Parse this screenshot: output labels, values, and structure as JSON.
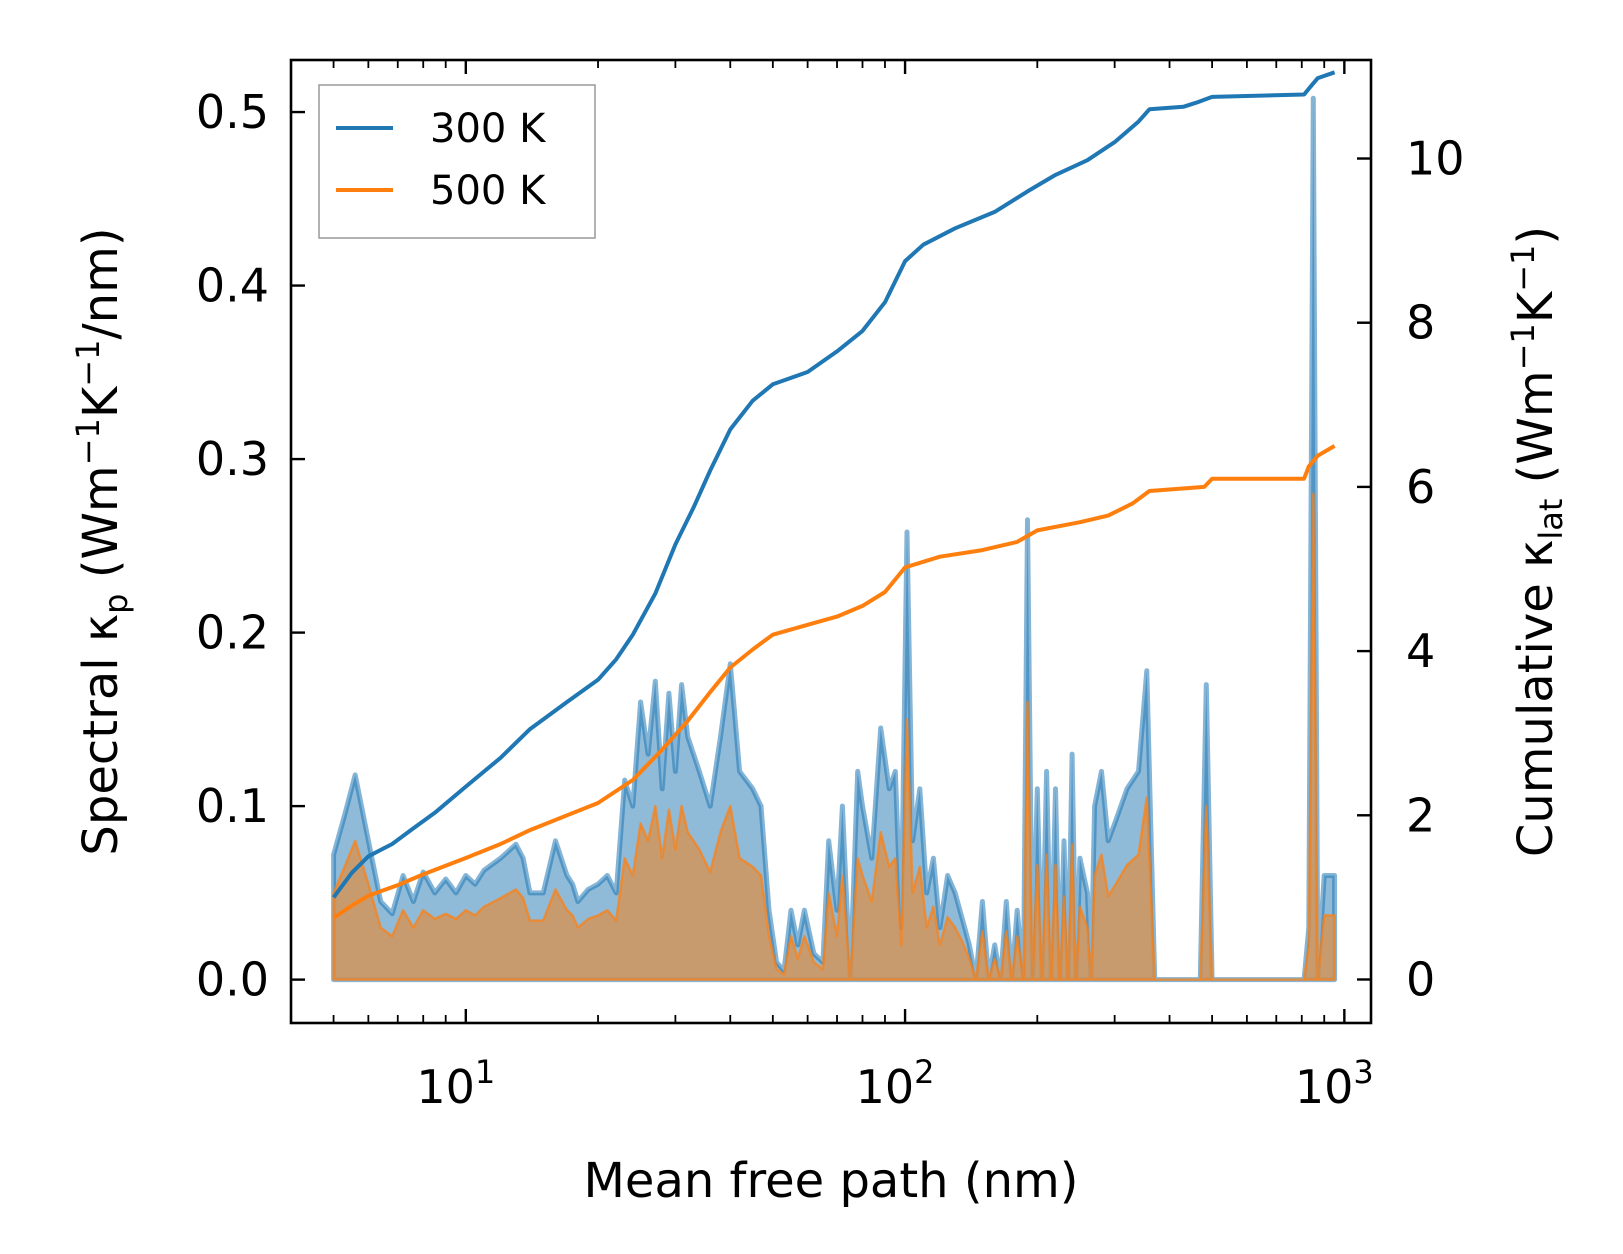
{
  "chart_data": {
    "type": "line",
    "title": "",
    "xlabel": "Mean free path (nm)",
    "xscale": "log",
    "xlim": [
      4.0,
      1150
    ],
    "x_ticks": [
      {
        "value": 10,
        "base": "10",
        "exp": "1"
      },
      {
        "value": 100,
        "base": "10",
        "exp": "2"
      },
      {
        "value": 1000,
        "base": "10",
        "exp": "3"
      }
    ],
    "ylabel_left": {
      "main": "Spectral κ",
      "sub": "p",
      "unit_open": " (Wm",
      "sup1": "−1",
      "mid": "K",
      "sup2": "−1",
      "unit_close": "/nm)"
    },
    "ylim_left": [
      -0.025,
      0.53
    ],
    "y_ticks_left": [
      "0.0",
      "0.1",
      "0.2",
      "0.3",
      "0.4",
      "0.5"
    ],
    "ylabel_right": {
      "main": "Cumulative κ",
      "sub": "lat",
      "unit_open": " (Wm",
      "sup1": "−1",
      "mid": "K",
      "sup2": "−1",
      "unit_close": ")"
    },
    "ylim_right": [
      -0.53,
      11.2
    ],
    "y_ticks_right": [
      "0",
      "2",
      "4",
      "6",
      "8",
      "10"
    ],
    "legend": {
      "position": "top-left",
      "entries": [
        "300 K",
        "500 K"
      ]
    },
    "colors": {
      "300 K": "#1f77b4",
      "500 K": "#ff7f0e",
      "fill_300": "#1f77b4",
      "fill_500": "#d2955a"
    },
    "series": [
      {
        "name": "300 K",
        "axis": "right",
        "kind": "cumulative",
        "points": [
          [
            5.0,
            1.0
          ],
          [
            5.5,
            1.3
          ],
          [
            6.0,
            1.5
          ],
          [
            6.8,
            1.65
          ],
          [
            7.5,
            1.82
          ],
          [
            8.5,
            2.03
          ],
          [
            10,
            2.35
          ],
          [
            12,
            2.7
          ],
          [
            14,
            3.05
          ],
          [
            17,
            3.38
          ],
          [
            20,
            3.65
          ],
          [
            22,
            3.9
          ],
          [
            24,
            4.2
          ],
          [
            27,
            4.7
          ],
          [
            30,
            5.3
          ],
          [
            33,
            5.75
          ],
          [
            36,
            6.2
          ],
          [
            40,
            6.7
          ],
          [
            45,
            7.05
          ],
          [
            50,
            7.25
          ],
          [
            60,
            7.4
          ],
          [
            70,
            7.65
          ],
          [
            80,
            7.9
          ],
          [
            90,
            8.25
          ],
          [
            100,
            8.75
          ],
          [
            110,
            8.95
          ],
          [
            130,
            9.15
          ],
          [
            160,
            9.35
          ],
          [
            190,
            9.6
          ],
          [
            220,
            9.8
          ],
          [
            260,
            9.98
          ],
          [
            300,
            10.2
          ],
          [
            340,
            10.45
          ],
          [
            360,
            10.6
          ],
          [
            430,
            10.63
          ],
          [
            460,
            10.68
          ],
          [
            500,
            10.75
          ],
          [
            810,
            10.78
          ],
          [
            830,
            10.85
          ],
          [
            870,
            10.98
          ],
          [
            950,
            11.05
          ]
        ]
      },
      {
        "name": "500 K",
        "axis": "right",
        "kind": "cumulative",
        "points": [
          [
            5.0,
            0.75
          ],
          [
            5.5,
            0.9
          ],
          [
            6.0,
            1.02
          ],
          [
            7,
            1.15
          ],
          [
            8,
            1.28
          ],
          [
            10,
            1.48
          ],
          [
            12,
            1.65
          ],
          [
            14,
            1.82
          ],
          [
            17,
            2.0
          ],
          [
            20,
            2.15
          ],
          [
            24,
            2.43
          ],
          [
            28,
            2.8
          ],
          [
            32,
            3.15
          ],
          [
            36,
            3.5
          ],
          [
            40,
            3.8
          ],
          [
            45,
            4.02
          ],
          [
            50,
            4.2
          ],
          [
            60,
            4.32
          ],
          [
            70,
            4.42
          ],
          [
            80,
            4.55
          ],
          [
            90,
            4.72
          ],
          [
            100,
            5.02
          ],
          [
            120,
            5.15
          ],
          [
            150,
            5.23
          ],
          [
            180,
            5.33
          ],
          [
            200,
            5.47
          ],
          [
            250,
            5.57
          ],
          [
            290,
            5.65
          ],
          [
            330,
            5.8
          ],
          [
            360,
            5.95
          ],
          [
            480,
            6.0
          ],
          [
            500,
            6.1
          ],
          [
            810,
            6.1
          ],
          [
            830,
            6.25
          ],
          [
            870,
            6.38
          ],
          [
            950,
            6.5
          ]
        ]
      },
      {
        "name": "300 K",
        "axis": "left",
        "kind": "spectral",
        "points": [
          [
            5.0,
            0.072
          ],
          [
            5.3,
            0.095
          ],
          [
            5.6,
            0.118
          ],
          [
            6.0,
            0.08
          ],
          [
            6.4,
            0.045
          ],
          [
            6.8,
            0.038
          ],
          [
            7.2,
            0.06
          ],
          [
            7.6,
            0.045
          ],
          [
            8.0,
            0.062
          ],
          [
            8.5,
            0.05
          ],
          [
            9.0,
            0.058
          ],
          [
            9.5,
            0.05
          ],
          [
            10,
            0.06
          ],
          [
            10.5,
            0.055
          ],
          [
            11,
            0.063
          ],
          [
            12,
            0.07
          ],
          [
            13,
            0.078
          ],
          [
            13.5,
            0.07
          ],
          [
            14,
            0.05
          ],
          [
            15,
            0.05
          ],
          [
            16,
            0.08
          ],
          [
            17,
            0.06
          ],
          [
            17.5,
            0.055
          ],
          [
            18,
            0.045
          ],
          [
            19,
            0.052
          ],
          [
            20,
            0.055
          ],
          [
            21,
            0.06
          ],
          [
            22,
            0.05
          ],
          [
            23,
            0.115
          ],
          [
            24,
            0.1
          ],
          [
            25,
            0.16
          ],
          [
            26,
            0.13
          ],
          [
            27,
            0.172
          ],
          [
            28,
            0.11
          ],
          [
            29,
            0.165
          ],
          [
            30,
            0.12
          ],
          [
            31,
            0.17
          ],
          [
            32,
            0.14
          ],
          [
            34,
            0.12
          ],
          [
            36,
            0.1
          ],
          [
            38,
            0.14
          ],
          [
            40,
            0.182
          ],
          [
            42,
            0.12
          ],
          [
            45,
            0.11
          ],
          [
            47,
            0.1
          ],
          [
            49,
            0.04
          ],
          [
            51,
            0.01
          ],
          [
            53,
            0.005
          ],
          [
            55,
            0.04
          ],
          [
            57,
            0.02
          ],
          [
            59,
            0.04
          ],
          [
            62,
            0.015
          ],
          [
            65,
            0.01
          ],
          [
            67,
            0.08
          ],
          [
            70,
            0.04
          ],
          [
            72,
            0.1
          ],
          [
            75,
            0.0
          ],
          [
            78,
            0.12
          ],
          [
            80,
            0.1
          ],
          [
            84,
            0.07
          ],
          [
            88,
            0.145
          ],
          [
            92,
            0.11
          ],
          [
            95,
            0.12
          ],
          [
            98,
            0.03
          ],
          [
            101,
            0.258
          ],
          [
            104,
            0.08
          ],
          [
            108,
            0.11
          ],
          [
            112,
            0.05
          ],
          [
            116,
            0.07
          ],
          [
            120,
            0.03
          ],
          [
            125,
            0.06
          ],
          [
            130,
            0.05
          ],
          [
            135,
            0.035
          ],
          [
            140,
            0.02
          ],
          [
            145,
            0.0
          ],
          [
            150,
            0.045
          ],
          [
            155,
            0.0
          ],
          [
            160,
            0.02
          ],
          [
            165,
            0.0
          ],
          [
            170,
            0.045
          ],
          [
            175,
            0.0
          ],
          [
            180,
            0.04
          ],
          [
            186,
            0.0
          ],
          [
            190,
            0.265
          ],
          [
            195,
            0.0
          ],
          [
            200,
            0.11
          ],
          [
            205,
            0.0
          ],
          [
            210,
            0.12
          ],
          [
            215,
            0.0
          ],
          [
            220,
            0.11
          ],
          [
            225,
            0.0
          ],
          [
            230,
            0.08
          ],
          [
            235,
            0.0
          ],
          [
            240,
            0.13
          ],
          [
            245,
            0.0
          ],
          [
            250,
            0.07
          ],
          [
            260,
            0.05
          ],
          [
            265,
            0.0
          ],
          [
            270,
            0.1
          ],
          [
            280,
            0.12
          ],
          [
            290,
            0.08
          ],
          [
            300,
            0.09
          ],
          [
            320,
            0.11
          ],
          [
            340,
            0.12
          ],
          [
            355,
            0.178
          ],
          [
            370,
            0.0
          ],
          [
            470,
            0.0
          ],
          [
            485,
            0.17
          ],
          [
            500,
            0.0
          ],
          [
            810,
            0.0
          ],
          [
            830,
            0.03
          ],
          [
            850,
            0.508
          ],
          [
            870,
            0.0
          ],
          [
            900,
            0.06
          ],
          [
            950,
            0.06
          ]
        ]
      },
      {
        "name": "500 K",
        "axis": "left",
        "kind": "spectral",
        "points": [
          [
            5.0,
            0.05
          ],
          [
            5.3,
            0.065
          ],
          [
            5.6,
            0.08
          ],
          [
            6.0,
            0.055
          ],
          [
            6.4,
            0.03
          ],
          [
            6.8,
            0.025
          ],
          [
            7.2,
            0.04
          ],
          [
            7.6,
            0.03
          ],
          [
            8.0,
            0.04
          ],
          [
            8.5,
            0.035
          ],
          [
            9.0,
            0.038
          ],
          [
            9.5,
            0.035
          ],
          [
            10,
            0.04
          ],
          [
            10.5,
            0.037
          ],
          [
            11,
            0.042
          ],
          [
            12,
            0.047
          ],
          [
            13,
            0.052
          ],
          [
            13.5,
            0.047
          ],
          [
            14,
            0.034
          ],
          [
            15,
            0.034
          ],
          [
            16,
            0.052
          ],
          [
            17,
            0.04
          ],
          [
            17.5,
            0.037
          ],
          [
            18,
            0.03
          ],
          [
            19,
            0.035
          ],
          [
            20,
            0.037
          ],
          [
            21,
            0.04
          ],
          [
            22,
            0.034
          ],
          [
            23,
            0.07
          ],
          [
            24,
            0.06
          ],
          [
            25,
            0.09
          ],
          [
            26,
            0.08
          ],
          [
            27,
            0.1
          ],
          [
            28,
            0.07
          ],
          [
            29,
            0.098
          ],
          [
            30,
            0.075
          ],
          [
            31,
            0.1
          ],
          [
            32,
            0.085
          ],
          [
            34,
            0.075
          ],
          [
            36,
            0.062
          ],
          [
            38,
            0.085
          ],
          [
            40,
            0.1
          ],
          [
            42,
            0.07
          ],
          [
            45,
            0.065
          ],
          [
            47,
            0.06
          ],
          [
            49,
            0.025
          ],
          [
            51,
            0.006
          ],
          [
            53,
            0.003
          ],
          [
            55,
            0.025
          ],
          [
            57,
            0.012
          ],
          [
            59,
            0.025
          ],
          [
            62,
            0.01
          ],
          [
            65,
            0.006
          ],
          [
            67,
            0.05
          ],
          [
            70,
            0.025
          ],
          [
            72,
            0.06
          ],
          [
            75,
            0.0
          ],
          [
            78,
            0.07
          ],
          [
            80,
            0.06
          ],
          [
            84,
            0.045
          ],
          [
            88,
            0.085
          ],
          [
            92,
            0.065
          ],
          [
            95,
            0.07
          ],
          [
            98,
            0.02
          ],
          [
            101,
            0.15
          ],
          [
            104,
            0.05
          ],
          [
            108,
            0.065
          ],
          [
            112,
            0.03
          ],
          [
            116,
            0.042
          ],
          [
            120,
            0.02
          ],
          [
            125,
            0.036
          ],
          [
            130,
            0.03
          ],
          [
            135,
            0.022
          ],
          [
            140,
            0.012
          ],
          [
            145,
            0.0
          ],
          [
            150,
            0.028
          ],
          [
            155,
            0.0
          ],
          [
            160,
            0.012
          ],
          [
            165,
            0.0
          ],
          [
            170,
            0.028
          ],
          [
            175,
            0.0
          ],
          [
            180,
            0.025
          ],
          [
            186,
            0.0
          ],
          [
            190,
            0.16
          ],
          [
            195,
            0.0
          ],
          [
            200,
            0.066
          ],
          [
            205,
            0.0
          ],
          [
            210,
            0.072
          ],
          [
            215,
            0.0
          ],
          [
            220,
            0.066
          ],
          [
            225,
            0.0
          ],
          [
            230,
            0.048
          ],
          [
            235,
            0.0
          ],
          [
            240,
            0.078
          ],
          [
            245,
            0.0
          ],
          [
            250,
            0.042
          ],
          [
            260,
            0.03
          ],
          [
            265,
            0.0
          ],
          [
            270,
            0.06
          ],
          [
            280,
            0.072
          ],
          [
            290,
            0.048
          ],
          [
            300,
            0.054
          ],
          [
            320,
            0.066
          ],
          [
            340,
            0.072
          ],
          [
            355,
            0.105
          ],
          [
            370,
            0.0
          ],
          [
            470,
            0.0
          ],
          [
            485,
            0.1
          ],
          [
            500,
            0.0
          ],
          [
            810,
            0.0
          ],
          [
            830,
            0.02
          ],
          [
            850,
            0.28
          ],
          [
            870,
            0.0
          ],
          [
            900,
            0.037
          ],
          [
            950,
            0.037
          ]
        ]
      }
    ]
  }
}
